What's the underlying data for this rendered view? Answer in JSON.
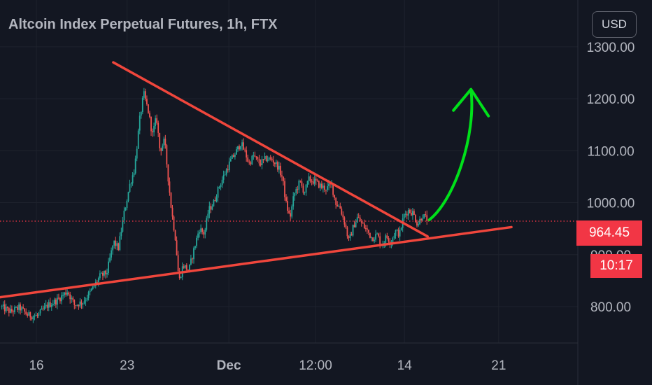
{
  "header": {
    "title": "Altcoin Index Perpetual Futures, 1h, FTX"
  },
  "currency_button": {
    "label": "USD"
  },
  "last_price": {
    "label": "964.45",
    "value": 964.45,
    "color": "#f23645"
  },
  "countdown": {
    "label": "10:17"
  },
  "colors": {
    "background": "#131722",
    "grid": "#1e222d",
    "axis_text": "#b2b5be",
    "candle_up": "#26a69a",
    "candle_down": "#ef5350",
    "trendline": "#f0463c",
    "arrow": "#00e01a"
  },
  "chart_data": {
    "type": "candlestick",
    "title": "Altcoin Index Perpetual Futures, 1h, FTX",
    "ylim": [
      730,
      1390
    ],
    "y_ticks": [
      "1300.00",
      "1200.00",
      "1100.00",
      "1000.00",
      "900.00",
      "800.00"
    ],
    "x_ticks": [
      "16",
      "23",
      "Dec",
      "12:00",
      "14",
      "21"
    ],
    "grid": true,
    "x_range": [
      0,
      100
    ],
    "tick_positions": [
      6.3,
      22.0,
      39.6,
      54.6,
      70.0,
      86.3
    ],
    "price_path": [
      [
        0.2,
        800
      ],
      [
        2.0,
        790
      ],
      [
        3.5,
        798
      ],
      [
        5.0,
        783
      ],
      [
        6.6,
        782
      ],
      [
        8.3,
        802
      ],
      [
        10.0,
        812
      ],
      [
        11.8,
        830
      ],
      [
        13.0,
        803
      ],
      [
        14.5,
        809
      ],
      [
        16.0,
        832
      ],
      [
        17.4,
        858
      ],
      [
        18.6,
        865
      ],
      [
        19.8,
        925
      ],
      [
        20.6,
        912
      ],
      [
        21.6,
        980
      ],
      [
        22.6,
        1035
      ],
      [
        23.4,
        1065
      ],
      [
        24.3,
        1160
      ],
      [
        25.0,
        1210
      ],
      [
        25.8,
        1175
      ],
      [
        26.5,
        1130
      ],
      [
        27.2,
        1165
      ],
      [
        27.8,
        1100
      ],
      [
        28.6,
        1120
      ],
      [
        29.2,
        1050
      ],
      [
        29.8,
        985
      ],
      [
        30.5,
        930
      ],
      [
        31.1,
        848
      ],
      [
        31.8,
        880
      ],
      [
        32.8,
        870
      ],
      [
        33.8,
        915
      ],
      [
        34.6,
        950
      ],
      [
        35.5,
        940
      ],
      [
        36.2,
        985
      ],
      [
        37.1,
        1000
      ],
      [
        38.0,
        1030
      ],
      [
        39.0,
        1055
      ],
      [
        40.0,
        1080
      ],
      [
        41.0,
        1098
      ],
      [
        41.8,
        1115
      ],
      [
        42.6,
        1095
      ],
      [
        43.2,
        1075
      ],
      [
        44.0,
        1090
      ],
      [
        45.1,
        1075
      ],
      [
        46.2,
        1085
      ],
      [
        47.3,
        1082
      ],
      [
        48.2,
        1070
      ],
      [
        49.0,
        1048
      ],
      [
        49.6,
        1000
      ],
      [
        50.3,
        970
      ],
      [
        51.0,
        1015
      ],
      [
        52.0,
        1040
      ],
      [
        52.8,
        1020
      ],
      [
        53.6,
        1045
      ],
      [
        54.7,
        1040
      ],
      [
        55.8,
        1030
      ],
      [
        56.7,
        1028
      ],
      [
        57.5,
        1035
      ],
      [
        58.2,
        1000
      ],
      [
        59.0,
        990
      ],
      [
        59.8,
        960
      ],
      [
        60.5,
        925
      ],
      [
        61.3,
        955
      ],
      [
        62.0,
        972
      ],
      [
        62.7,
        960
      ],
      [
        63.6,
        947
      ],
      [
        64.5,
        932
      ],
      [
        65.4,
        938
      ],
      [
        66.2,
        918
      ],
      [
        67.0,
        935
      ],
      [
        67.8,
        925
      ],
      [
        68.5,
        945
      ],
      [
        69.3,
        940
      ],
      [
        70.0,
        975
      ],
      [
        70.8,
        985
      ],
      [
        71.6,
        980
      ],
      [
        72.4,
        958
      ],
      [
        73.2,
        976
      ],
      [
        74.0,
        968
      ]
    ],
    "annotations": {
      "upper_trendline": [
        [
          19.6,
          1270
        ],
        [
          74.0,
          935
        ]
      ],
      "lower_trendline": [
        [
          0.0,
          818
        ],
        [
          88.5,
          953
        ]
      ],
      "breakout_arrow": {
        "from": [
          74.3,
          967
        ],
        "to": [
          81.5,
          1218
        ]
      }
    }
  }
}
